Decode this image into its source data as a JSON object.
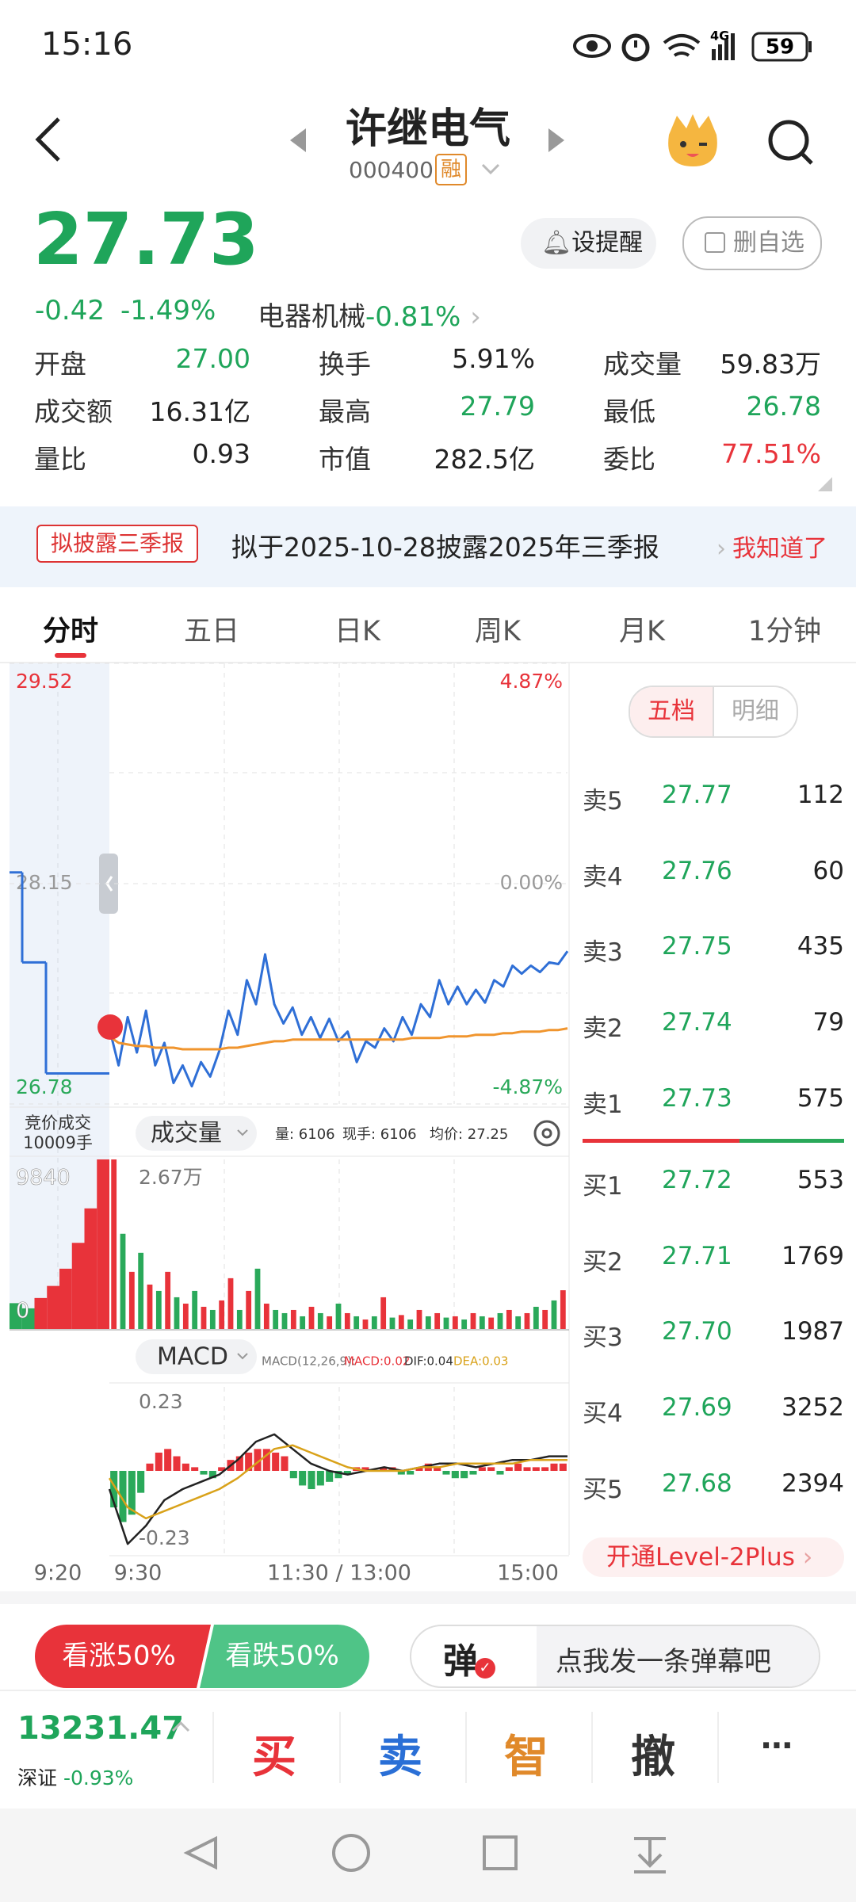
{
  "status_bar": {
    "time": "15:16",
    "network": "4G",
    "battery": "59"
  },
  "header": {
    "title": "许继电气",
    "code": "000400",
    "badge": "融"
  },
  "quote": {
    "price": "27.73",
    "change": "-0.42",
    "change_pct": "-1.49%",
    "sector": "电器机械",
    "sector_change": "-0.81%",
    "remind": "设提醒",
    "unwatch": "删自选",
    "stats": [
      {
        "label": "开盘",
        "value": "27.00",
        "color": "#1fa55a"
      },
      {
        "label": "换手",
        "value": "5.91%",
        "color": "#222222"
      },
      {
        "label": "成交量",
        "value": "59.83万",
        "color": "#222222"
      },
      {
        "label": "成交额",
        "value": "16.31亿",
        "color": "#222222"
      },
      {
        "label": "最高",
        "value": "27.79",
        "color": "#1fa55a"
      },
      {
        "label": "最低",
        "value": "26.78",
        "color": "#1fa55a"
      },
      {
        "label": "量比",
        "value": "0.93",
        "color": "#222222"
      },
      {
        "label": "市值",
        "value": "282.5亿",
        "color": "#222222"
      },
      {
        "label": "委比",
        "value": "77.51%",
        "color": "#e8333a"
      }
    ]
  },
  "notice": {
    "tag": "拟披露三季报",
    "text": "拟于2025-10-28披露2025年三季报",
    "action": "我知道了"
  },
  "tabs": [
    "分时",
    "五日",
    "日K",
    "周K",
    "月K",
    "1分钟"
  ],
  "chart_data": [
    {
      "type": "line",
      "ylim": [
        26.78,
        29.52
      ],
      "yticks": [
        29.52,
        28.15,
        26.78
      ],
      "pct_labels": [
        "4.87%",
        "0.00%",
        "-4.87%"
      ],
      "tick_colors": [
        "#e8333a",
        "#999999",
        "#2aa95a"
      ],
      "x_labels": [
        "9:20",
        "9:30",
        "11:30 / 13:00",
        "15:00"
      ],
      "auction": {
        "color": "#2f6fd6",
        "values": [
          28.22,
          27.66,
          26.97
        ]
      },
      "series": [
        {
          "color": "#2f6fd6",
          "values": [
            27.25,
            27.02,
            27.32,
            27.1,
            27.36,
            27.02,
            27.16,
            26.91,
            27.02,
            26.89,
            27.04,
            26.95,
            27.11,
            27.36,
            27.21,
            27.55,
            27.4,
            27.71,
            27.4,
            27.28,
            27.38,
            27.21,
            27.32,
            27.19,
            27.31,
            27.17,
            27.23,
            27.04,
            27.17,
            27.13,
            27.25,
            27.17,
            27.32,
            27.21,
            27.4,
            27.32,
            27.55,
            27.4,
            27.51,
            27.4,
            27.49,
            27.41,
            27.55,
            27.51,
            27.64,
            27.59,
            27.64,
            27.6,
            27.66,
            27.65,
            27.73
          ]
        },
        {
          "color": "#f0952e",
          "values": [
            27.2,
            27.16,
            27.15,
            27.14,
            27.14,
            27.13,
            27.13,
            27.13,
            27.12,
            27.12,
            27.12,
            27.12,
            27.12,
            27.13,
            27.13,
            27.14,
            27.15,
            27.16,
            27.17,
            27.17,
            27.18,
            27.18,
            27.18,
            27.18,
            27.18,
            27.18,
            27.18,
            27.18,
            27.18,
            27.18,
            27.18,
            27.18,
            27.18,
            27.19,
            27.19,
            27.19,
            27.19,
            27.2,
            27.2,
            27.2,
            27.21,
            27.21,
            27.21,
            27.22,
            27.22,
            27.23,
            27.23,
            27.23,
            27.24,
            27.24,
            27.25
          ]
        }
      ]
    },
    {
      "type": "bar",
      "indicator": "成交量",
      "info": [
        "量: 6106",
        "现手: 6106",
        "均价: 27.25"
      ],
      "auction_label": [
        "竞价成交",
        "10009手"
      ],
      "ylim": [
        0,
        26700
      ],
      "yticks": [
        {
          "value": 26700,
          "label": "2.67万"
        }
      ],
      "up_color": "#e8333a",
      "down_color": "#2aa95a",
      "values": [
        26700,
        15000,
        9000,
        12000,
        7000,
        6000,
        9000,
        5000,
        4000,
        6000,
        3500,
        3000,
        4500,
        8000,
        3000,
        6000,
        9500,
        4000,
        3000,
        2500,
        3000,
        2000,
        3500,
        2500,
        2000,
        4000,
        2500,
        2000,
        1500,
        2000,
        5000,
        1800,
        2200,
        1500,
        3000,
        2000,
        2500,
        1800,
        2000,
        1500,
        2500,
        2000,
        1800,
        2500,
        3000,
        2000,
        2500,
        3500,
        3000,
        4500,
        6106
      ],
      "auction_volume": {
        "ylim": [
          0,
          9840
        ],
        "yticks": [
          9840,
          0
        ],
        "values": [
          1500,
          1200,
          1800,
          2500,
          3500,
          5000,
          7000,
          9840
        ],
        "colors": [
          "#2aa95a",
          "#2aa95a",
          "#e8333a",
          "#e8333a",
          "#e8333a",
          "#e8333a",
          "#e8333a",
          "#e8333a"
        ]
      }
    },
    {
      "type": "macd",
      "indicator": "MACD",
      "params": "MACD(12,26,9):",
      "info": [
        {
          "text": "MACD:0.02",
          "color": "#e8333a"
        },
        {
          "text": "DIF:0.04",
          "color": "#333333"
        },
        {
          "text": "DEA:0.03",
          "color": "#d9a21a"
        }
      ],
      "ylim": [
        -0.23,
        0.23
      ],
      "yticks": [
        0.23,
        -0.23
      ],
      "up_color": "#e8333a",
      "down_color": "#2aa95a",
      "histogram": [
        -0.1,
        -0.14,
        -0.12,
        -0.06,
        0.02,
        0.05,
        0.06,
        0.04,
        0.02,
        0.01,
        -0.01,
        -0.02,
        0.01,
        0.03,
        0.04,
        0.05,
        0.06,
        0.06,
        0.05,
        0.04,
        -0.02,
        -0.04,
        -0.05,
        -0.04,
        -0.03,
        -0.02,
        -0.01,
        0.01,
        0.01,
        0.0,
        0.01,
        0.01,
        -0.01,
        -0.01,
        0.01,
        0.02,
        0.01,
        -0.01,
        -0.02,
        -0.02,
        -0.01,
        0.01,
        0.01,
        -0.01,
        0.01,
        0.02,
        0.01,
        0.01,
        0.01,
        0.02,
        0.02
      ],
      "series": [
        {
          "color": "#222222",
          "values": [
            -0.05,
            -0.2,
            -0.15,
            -0.08,
            -0.05,
            -0.03,
            -0.01,
            0.03,
            0.08,
            0.1,
            0.06,
            0.02,
            0.0,
            -0.01,
            0.0,
            0.01,
            0.0,
            0.01,
            0.02,
            0.02,
            0.01,
            0.02,
            0.03,
            0.03,
            0.04,
            0.04
          ]
        },
        {
          "color": "#d9a21a",
          "values": [
            -0.02,
            -0.1,
            -0.13,
            -0.11,
            -0.09,
            -0.07,
            -0.05,
            -0.02,
            0.02,
            0.06,
            0.07,
            0.05,
            0.03,
            0.01,
            0.0,
            0.0,
            0.0,
            0.01,
            0.01,
            0.02,
            0.02,
            0.02,
            0.02,
            0.03,
            0.03,
            0.03
          ]
        }
      ]
    }
  ],
  "order_book": {
    "toggle": [
      "五档",
      "明细"
    ],
    "asks": [
      [
        "卖5",
        "27.77",
        "112"
      ],
      [
        "卖4",
        "27.76",
        "60"
      ],
      [
        "卖3",
        "27.75",
        "435"
      ],
      [
        "卖2",
        "27.74",
        "79"
      ],
      [
        "卖1",
        "27.73",
        "575"
      ]
    ],
    "bids": [
      [
        "买1",
        "27.72",
        "553"
      ],
      [
        "买2",
        "27.71",
        "1769"
      ],
      [
        "买3",
        "27.70",
        "1987"
      ],
      [
        "买4",
        "27.69",
        "3252"
      ],
      [
        "买5",
        "27.68",
        "2394"
      ]
    ],
    "upgrade": "开通Level-2Plus"
  },
  "sentiment": {
    "bull": "看涨50%",
    "bear": "看跌50%"
  },
  "danmaku": {
    "icon": "弹",
    "placeholder": "点我发一条弹幕吧"
  },
  "index": {
    "value": "13231.47",
    "name": "深证",
    "change": "-0.93%"
  },
  "actions": [
    {
      "text": "买",
      "color": "#e8333a"
    },
    {
      "text": "卖",
      "color": "#2a6fd6"
    },
    {
      "text": "智",
      "color": "#e0892a"
    },
    {
      "text": "撤",
      "color": "#333333"
    }
  ]
}
